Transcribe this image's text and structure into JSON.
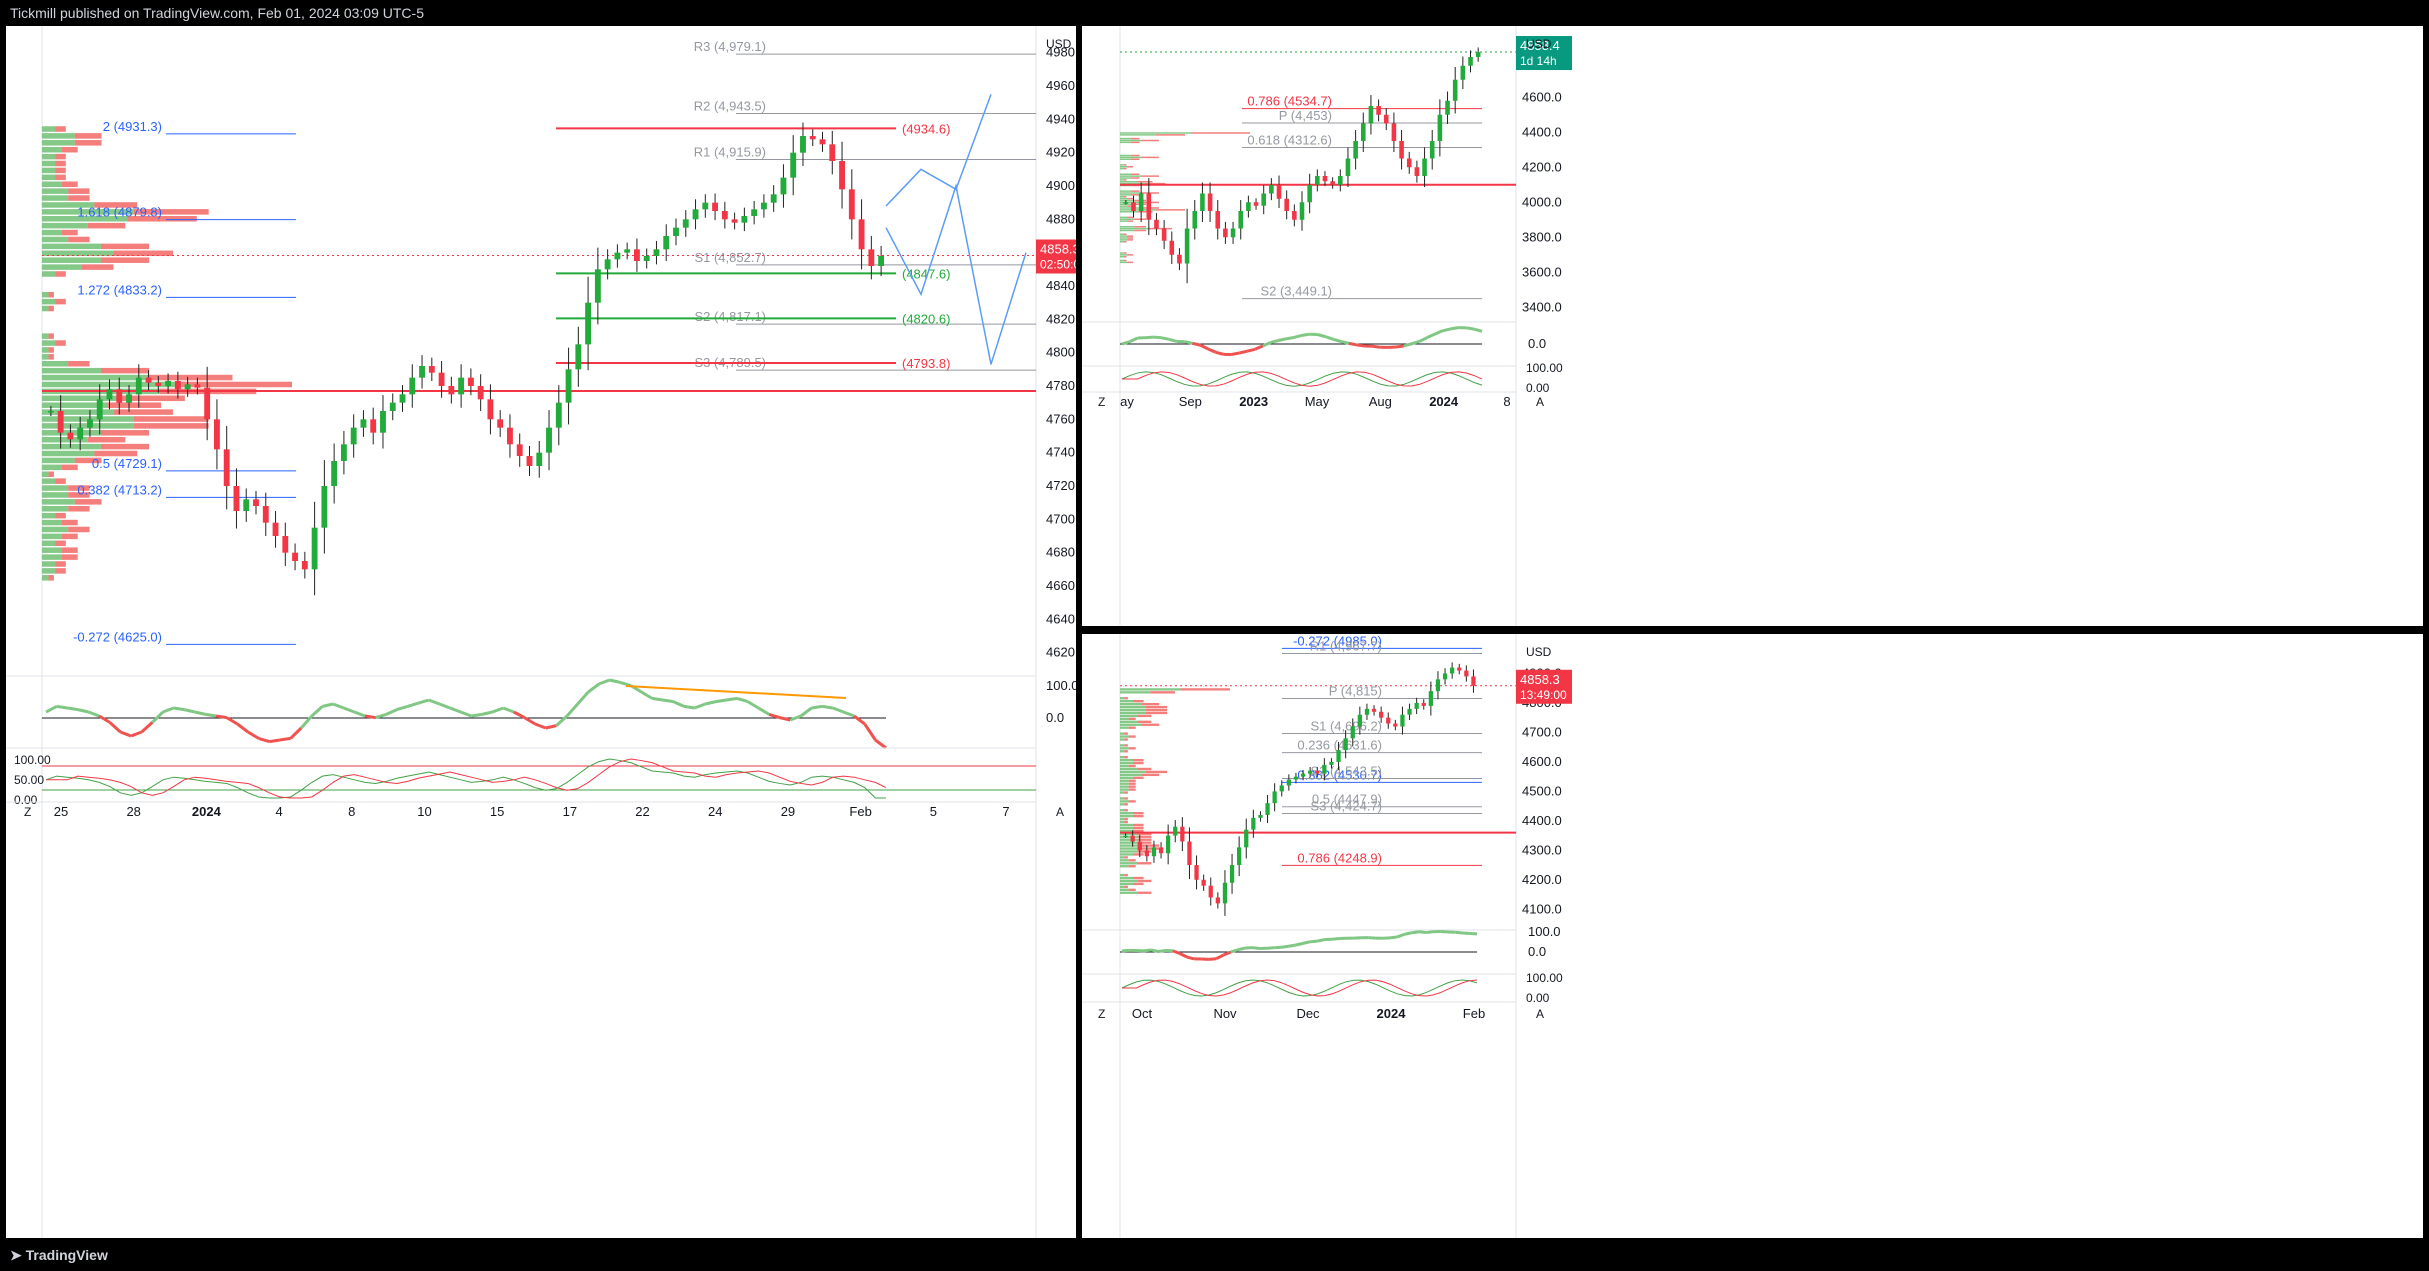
{
  "header": {
    "published": "Tickmill published on TradingView.com, Feb 01, 2024 03:09 UTC-5"
  },
  "footer": {
    "brand": "TradingView"
  },
  "colors": {
    "up": "#089981",
    "up_bright": "#22ab3a",
    "down": "#f23645",
    "blue": "#2962ff",
    "orange": "#ff9800"
  },
  "chart_data": [
    {
      "type": "candlestick",
      "panel": "main",
      "currency": "USD",
      "y_ticks": [
        "4980.0",
        "4960.0",
        "4940.0",
        "4920.0",
        "4900.0",
        "4880.0",
        "4860.0",
        "4840.0",
        "4820.0",
        "4800.0",
        "4780.0",
        "4760.0",
        "4740.0",
        "4720.0",
        "4700.0",
        "4680.0",
        "4660.0",
        "4640.0",
        "4620.0"
      ],
      "ylim": [
        4612,
        4990
      ],
      "x_ticks": [
        "25",
        "28",
        "2024",
        "4",
        "8",
        "10",
        "15",
        "17",
        "22",
        "24",
        "29",
        "Feb",
        "5",
        "7"
      ],
      "price_label": {
        "value": "4858.3",
        "countdown": "02:50:01"
      },
      "pivot_levels": [
        {
          "label": "R3 (4,979.1)",
          "value": 4979.1
        },
        {
          "label": "R2 (4,943.5)",
          "value": 4943.5
        },
        {
          "label": "R1 (4,915.9)",
          "value": 4915.9
        },
        {
          "label": "S1 (4,852.7)",
          "value": 4852.7
        },
        {
          "label": "S2 (4,817.1)",
          "value": 4817.1
        },
        {
          "label": "S3 (4,789.5)",
          "value": 4789.5
        }
      ],
      "fib_extension_levels": [
        {
          "label": "2 (4931.3)",
          "value": 4931.3
        },
        {
          "label": "1.618 (4879.8)",
          "value": 4879.8
        },
        {
          "label": "1.272 (4833.2)",
          "value": 4833.2
        },
        {
          "label": "0.5 (4729.1)",
          "value": 4729.1
        },
        {
          "label": "0.382 (4713.2)",
          "value": 4713.2
        },
        {
          "label": "-0.272 (4625.0)",
          "value": 4625.0
        }
      ],
      "horizontal_levels": [
        {
          "label": "(4934.6)",
          "value": 4934.6,
          "color": "red"
        },
        {
          "label": "(4847.6)",
          "value": 4847.6,
          "color": "green"
        },
        {
          "label": "(4820.6)",
          "value": 4820.6,
          "color": "green"
        },
        {
          "label": "(4793.8)",
          "value": 4793.8,
          "color": "red"
        }
      ],
      "oscillator_ticks": [
        "100.0",
        "0.0"
      ],
      "stochastic_ticks": [
        "100.00",
        "50.00",
        "0.00"
      ],
      "closes": [
        4765,
        4752,
        4748,
        4755,
        4760,
        4772,
        4778,
        4770,
        4775,
        4785,
        4782,
        4780,
        4783,
        4778,
        4781,
        4779,
        4760,
        4742,
        4720,
        4705,
        4712,
        4708,
        4698,
        4690,
        4680,
        4675,
        4670,
        4695,
        4720,
        4735,
        4745,
        4755,
        4760,
        4752,
        4765,
        4770,
        4775,
        4785,
        4792,
        4788,
        4780,
        4775,
        4785,
        4780,
        4772,
        4760,
        4755,
        4745,
        4738,
        4732,
        4740,
        4755,
        4770,
        4790,
        4805,
        4830,
        4850,
        4856,
        4860,
        4862,
        4855,
        4858,
        4862,
        4870,
        4875,
        4880,
        4886,
        4890,
        4885,
        4880,
        4878,
        4882,
        4886,
        4890,
        4895,
        4905,
        4920,
        4930,
        4928,
        4925,
        4915,
        4898,
        4880,
        4862,
        4852,
        4858
      ],
      "forecast_path": [
        [
          4888,
          4910,
          4898,
          4955
        ],
        [
          4875,
          4835,
          4900,
          4793,
          4860
        ]
      ],
      "oscillator": [
        55,
        62,
        60,
        58,
        55,
        50,
        42,
        30,
        25,
        30,
        42,
        55,
        60,
        58,
        55,
        52,
        50,
        48,
        40,
        30,
        22,
        18,
        20,
        22,
        35,
        50,
        62,
        65,
        60,
        55,
        50,
        48,
        52,
        58,
        62,
        66,
        70,
        65,
        60,
        55,
        50,
        52,
        55,
        60,
        55,
        48,
        40,
        35,
        38,
        50,
        65,
        80,
        90,
        95,
        92,
        88,
        80,
        72,
        70,
        68,
        62,
        60,
        65,
        68,
        70,
        72,
        68,
        60,
        52,
        48,
        45,
        50,
        60,
        62,
        60,
        55,
        50,
        40,
        20,
        10
      ]
    },
    {
      "type": "candlestick",
      "panel": "top-right",
      "currency": "USD",
      "y_ticks": [
        "4600.0",
        "4400.0",
        "4200.0",
        "4000.0",
        "3800.0",
        "3600.0",
        "3400.0"
      ],
      "ylim": [
        3350,
        4950
      ],
      "x_ticks": [
        "ay",
        "Sep",
        "2023",
        "May",
        "Aug",
        "2024",
        "8"
      ],
      "price_label": {
        "value": "4858.4",
        "countdown": "1d 14h"
      },
      "levels": [
        {
          "label": "0.786 (4534.7)",
          "value": 4534.7
        },
        {
          "label": "0.618 (4312.6)",
          "value": 4312.6
        },
        {
          "label": "P (4,453)",
          "value": 4453
        },
        {
          "label": "S2 (3,449.1)",
          "value": 3449.1
        }
      ],
      "oscillator_ticks": [
        "0.0"
      ],
      "stochastic_ticks": [
        "100.00",
        "0.00"
      ],
      "closes": [
        4000,
        3950,
        4050,
        3900,
        3850,
        3780,
        3700,
        3650,
        3850,
        3950,
        4050,
        3950,
        3850,
        3800,
        3850,
        3950,
        4000,
        3980,
        4050,
        4100,
        4020,
        3950,
        3900,
        4000,
        4100,
        4150,
        4120,
        4100,
        4150,
        4250,
        4350,
        4450,
        4550,
        4500,
        4450,
        4350,
        4250,
        4200,
        4150,
        4250,
        4350,
        4500,
        4580,
        4700,
        4780,
        4830,
        4858
      ]
    },
    {
      "type": "candlestick",
      "panel": "bottom-right",
      "currency": "USD",
      "y_ticks": [
        "4900.0",
        "4800.0",
        "4700.0",
        "4600.0",
        "4500.0",
        "4400.0",
        "4300.0",
        "4200.0",
        "4100.0"
      ],
      "ylim": [
        4050,
        5000
      ],
      "x_ticks": [
        "Oct",
        "Nov",
        "Dec",
        "2024",
        "Feb"
      ],
      "price_label": {
        "value": "4858.3",
        "countdown": "13:49:00"
      },
      "levels": [
        {
          "label": "-0.272 (4985.0)",
          "value": 4985.0
        },
        {
          "label": "R1 (4,967.7)",
          "value": 4967.7
        },
        {
          "label": "P (4,815)",
          "value": 4815
        },
        {
          "label": "S1 (4,696.2)",
          "value": 4696.2
        },
        {
          "label": "0.236 (4631.6)",
          "value": 4631.6
        },
        {
          "label": "0.382 (4530.7)",
          "value": 4530.7
        },
        {
          "label": "S2 (4,543.5)",
          "value": 4543.5
        },
        {
          "label": "0.5 (4447.9)",
          "value": 4447.9
        },
        {
          "label": "S3 (4,424.7)",
          "value": 4424.7
        },
        {
          "label": "0.786 (4248.9)",
          "value": 4248.9
        }
      ],
      "oscillator_ticks": [
        "100.0",
        "0.0"
      ],
      "stochastic_ticks": [
        "100.00",
        "0.00"
      ],
      "closes": [
        4350,
        4330,
        4300,
        4280,
        4310,
        4290,
        4350,
        4380,
        4330,
        4250,
        4200,
        4180,
        4140,
        4120,
        4190,
        4250,
        4310,
        4370,
        4410,
        4420,
        4460,
        4500,
        4520,
        4540,
        4550,
        4560,
        4570,
        4560,
        4590,
        4600,
        4640,
        4680,
        4720,
        4760,
        4780,
        4770,
        4750,
        4730,
        4720,
        4760,
        4780,
        4800,
        4790,
        4840,
        4880,
        4900,
        4920,
        4910,
        4890,
        4858
      ]
    }
  ]
}
